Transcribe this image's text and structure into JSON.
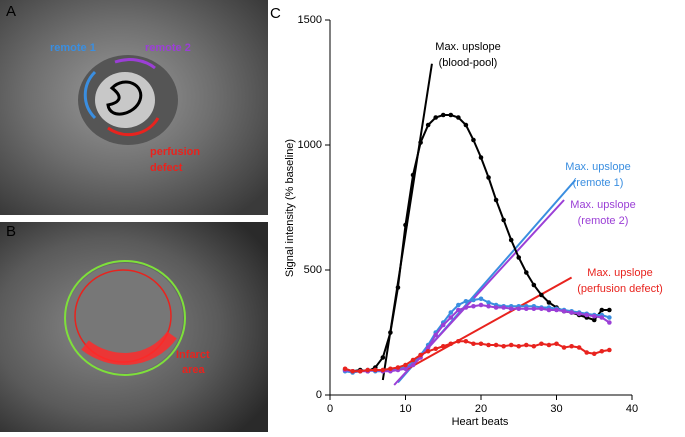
{
  "panels": {
    "a": {
      "label": "A",
      "remote1": "remote 1",
      "remote2": "remote 2",
      "defect": [
        "perfusion",
        "defect"
      ]
    },
    "b": {
      "label": "B",
      "infarct": [
        "Infarct",
        "area"
      ]
    }
  },
  "chart_data": {
    "type": "line",
    "panel_label": "C",
    "x_label": "Heart beats",
    "y_label": "Signal intensity (% baseline)",
    "xlim": [
      0,
      40
    ],
    "xticks": [
      0,
      10,
      20,
      30,
      40
    ],
    "ylim": [
      0,
      1500
    ],
    "yticks": [
      0,
      500,
      1000,
      1500
    ],
    "x": [
      2,
      3,
      4,
      5,
      6,
      7,
      8,
      9,
      10,
      11,
      12,
      13,
      14,
      15,
      16,
      17,
      18,
      19,
      20,
      21,
      22,
      23,
      24,
      25,
      26,
      27,
      28,
      29,
      30,
      31,
      32,
      33,
      34,
      35,
      36,
      37
    ],
    "series": [
      {
        "color": "#000000",
        "values": [
          100,
          95,
          100,
          95,
          110,
          150,
          250,
          430,
          680,
          880,
          1010,
          1080,
          1110,
          1120,
          1120,
          1110,
          1080,
          1020,
          950,
          870,
          780,
          700,
          620,
          550,
          490,
          440,
          400,
          370,
          350,
          335,
          330,
          320,
          310,
          300,
          340,
          340
        ]
      },
      {
        "color": "#3a8ee0",
        "values": [
          95,
          90,
          95,
          100,
          95,
          95,
          100,
          105,
          110,
          130,
          160,
          200,
          250,
          290,
          330,
          360,
          375,
          380,
          385,
          370,
          360,
          355,
          355,
          355,
          355,
          355,
          350,
          350,
          345,
          340,
          335,
          330,
          325,
          320,
          320,
          310
        ]
      },
      {
        "color": "#9b3fd6",
        "values": [
          100,
          95,
          95,
          95,
          100,
          95,
          95,
          100,
          105,
          120,
          150,
          190,
          240,
          280,
          310,
          340,
          350,
          355,
          360,
          355,
          350,
          350,
          345,
          345,
          345,
          345,
          345,
          340,
          340,
          335,
          330,
          325,
          320,
          315,
          310,
          290
        ]
      },
      {
        "color": "#e8231e",
        "values": [
          105,
          95,
          95,
          100,
          100,
          100,
          105,
          110,
          120,
          140,
          160,
          175,
          185,
          195,
          205,
          215,
          215,
          205,
          205,
          200,
          200,
          195,
          200,
          195,
          200,
          195,
          205,
          200,
          205,
          190,
          195,
          190,
          170,
          165,
          175,
          180
        ]
      }
    ],
    "upslopes": [
      {
        "color": "#000000",
        "label": [
          "Max. upslope",
          "(blood-pool)"
        ],
        "x": [
          7,
          13.5
        ],
        "values": [
          60,
          1325
        ]
      },
      {
        "color": "#3a8ee0",
        "label": [
          "Max. upslope",
          "(remote 1)"
        ],
        "x": [
          9,
          32.5
        ],
        "values": [
          50,
          860
        ]
      },
      {
        "color": "#9b3fd6",
        "label": [
          "Max. upslope",
          "(remote 2)"
        ],
        "x": [
          8.5,
          31
        ],
        "values": [
          40,
          780
        ]
      },
      {
        "color": "#e8231e",
        "label": [
          "Max. upslope",
          "(perfusion defect)"
        ],
        "x": [
          10,
          32
        ],
        "values": [
          100,
          470
        ]
      }
    ]
  }
}
